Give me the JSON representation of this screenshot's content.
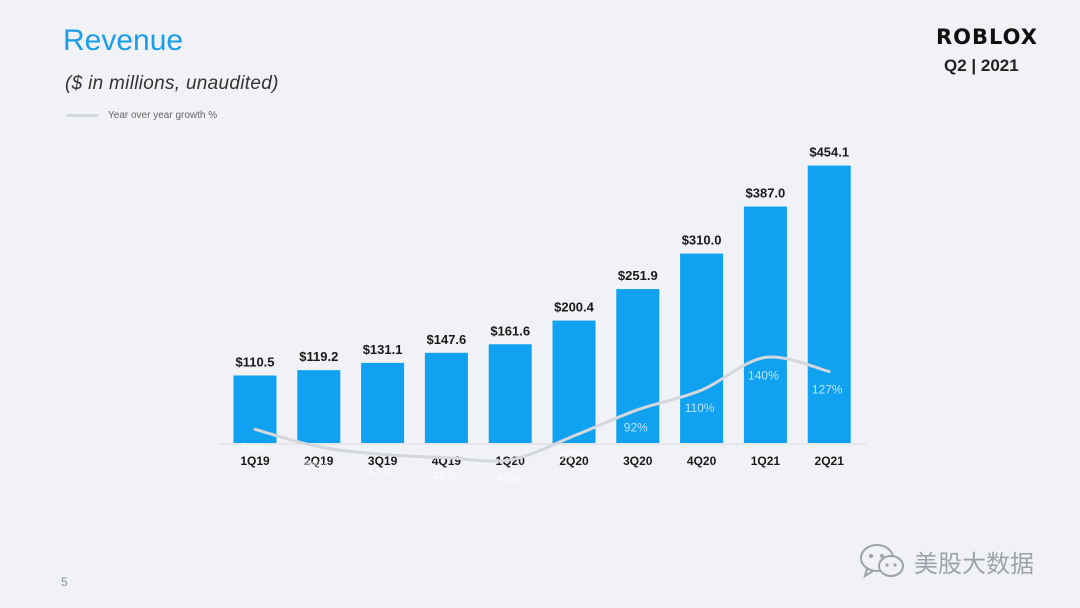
{
  "header": {
    "title": "Revenue",
    "subtitle": "($ in millions,  unaudited)",
    "legend_label": "Year over year growth %",
    "logo_text": "ROBLOX",
    "period": "Q2 | 2021"
  },
  "footer": {
    "page_number": "5",
    "watermark_text": "美股大数据",
    "watermark_icon": "wechat-icon"
  },
  "colors": {
    "accent": "#1a9ee8",
    "bar": "#10a1f1",
    "growth_line": "#d4d7dc",
    "background": "#f0f2f6"
  },
  "chart_data": {
    "type": "bar",
    "title": "Revenue",
    "subtitle": "($ in millions,  unaudited)",
    "categories": [
      "1Q19",
      "2Q19",
      "3Q19",
      "4Q19",
      "1Q20",
      "2Q20",
      "3Q20",
      "4Q20",
      "1Q21",
      "2Q21"
    ],
    "series": [
      {
        "values": [
          110.5,
          119.2,
          131.1,
          147.6,
          161.6,
          200.4,
          251.9,
          310.0,
          387.0,
          454.1
        ],
        "labels": [
          "$110.5",
          "$119.2",
          "$131.1",
          "$147.6",
          "$161.6",
          "$200.4",
          "$251.9",
          "$310.0",
          "$387.0",
          "$454.1"
        ]
      },
      {
        "name": "Year over year growth %",
        "type": "line",
        "values": [
          74,
          58,
          51,
          48,
          46,
          68,
          92,
          110,
          140,
          127
        ],
        "labels": [
          "74%",
          "58%",
          "51%",
          "48%",
          "46%",
          "68%",
          "92%",
          "110%",
          "140%",
          "127%"
        ]
      }
    ],
    "xlabel": "",
    "ylabel": "",
    "ylim": [
      0,
      470
    ],
    "grid": false,
    "legend_position": "top-left"
  }
}
